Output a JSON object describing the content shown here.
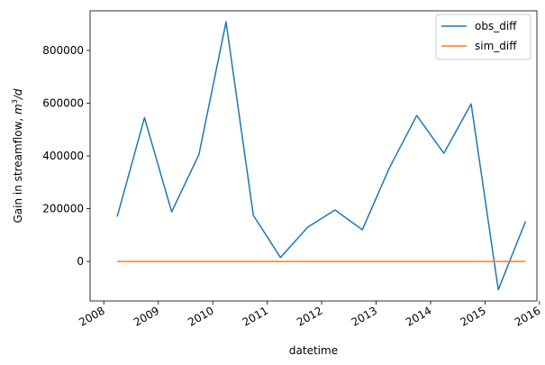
{
  "chart_data": {
    "type": "line",
    "xlabel": "datetime",
    "ylabel_prefix": "Gain in streamflow, ",
    "ylabel_unit_base": "m",
    "ylabel_unit_exp": "3",
    "ylabel_unit_suffix": "/d",
    "xlim": [
      "2007-10-01",
      "2015-12-15"
    ],
    "ylim": [
      -150000,
      950000
    ],
    "x_ticks": [
      "2008",
      "2009",
      "2010",
      "2011",
      "2012",
      "2013",
      "2014",
      "2015",
      "2016"
    ],
    "y_ticks": [
      "0",
      "200000",
      "400000",
      "600000",
      "800000"
    ],
    "legend": "top-right",
    "grid": false,
    "series": [
      {
        "name": "obs_diff",
        "color": "#1f77b4",
        "x": [
          "2008-03-31",
          "2008-09-30",
          "2009-03-31",
          "2009-09-30",
          "2010-03-31",
          "2010-09-30",
          "2011-03-31",
          "2011-09-30",
          "2012-03-31",
          "2012-09-30",
          "2013-03-31",
          "2013-09-30",
          "2014-03-31",
          "2014-09-30",
          "2015-03-31",
          "2015-09-30"
        ],
        "values": [
          170000,
          545000,
          188000,
          405000,
          908000,
          175000,
          15000,
          130000,
          195000,
          120000,
          355000,
          553000,
          410000,
          597000,
          -107000,
          152000
        ]
      },
      {
        "name": "sim_diff",
        "color": "#ff7f0e",
        "x": [
          "2008-03-31",
          "2008-09-30",
          "2009-03-31",
          "2009-09-30",
          "2010-03-31",
          "2010-09-30",
          "2011-03-31",
          "2011-09-30",
          "2012-03-31",
          "2012-09-30",
          "2013-03-31",
          "2013-09-30",
          "2014-03-31",
          "2014-09-30",
          "2015-03-31",
          "2015-09-30"
        ],
        "values": [
          0,
          0,
          0,
          0,
          0,
          0,
          0,
          0,
          0,
          0,
          0,
          0,
          0,
          0,
          0,
          0
        ]
      }
    ]
  }
}
